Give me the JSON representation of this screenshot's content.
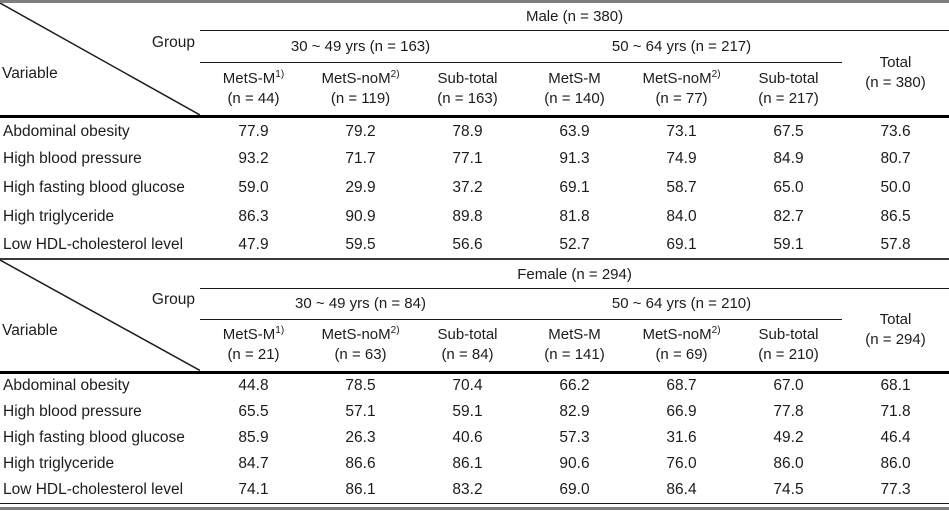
{
  "colors": {
    "text": "#1c1c1c",
    "thin_rule": "#1a1a1a",
    "thick_rule": "#000000",
    "gray_rule": "#7e7e7e"
  },
  "tables": [
    {
      "id": "male",
      "gender_header": "Male (n = 380)",
      "corner": {
        "group_label": "Group",
        "variable_label": "Variable"
      },
      "age_groups": [
        {
          "label": "30 ~ 49 yrs (n = 163)"
        },
        {
          "label": "50 ~ 64 yrs (n = 217)"
        }
      ],
      "total_header": {
        "line1": "Total",
        "line2": "(n = 380)"
      },
      "columns": [
        {
          "label": "MetS-M",
          "sup": "1)",
          "n": "(n = 44)"
        },
        {
          "label": "MetS-noM",
          "sup": "2)",
          "n": "(n = 119)"
        },
        {
          "label": "Sub-total",
          "sup": "",
          "n": "(n = 163)"
        },
        {
          "label": "MetS-M",
          "sup": "",
          "n": "(n = 140)"
        },
        {
          "label": "MetS-noM",
          "sup": "2)",
          "n": "(n = 77)"
        },
        {
          "label": "Sub-total",
          "sup": "",
          "n": "(n = 217)"
        }
      ],
      "rows": [
        {
          "variable": "Abdominal obesity",
          "values": [
            "77.9",
            "79.2",
            "78.9",
            "63.9",
            "73.1",
            "67.5",
            "73.6"
          ]
        },
        {
          "variable": "High blood pressure",
          "values": [
            "93.2",
            "71.7",
            "77.1",
            "91.3",
            "74.9",
            "84.9",
            "80.7"
          ]
        },
        {
          "variable": "High fasting blood glucose",
          "values": [
            "59.0",
            "29.9",
            "37.2",
            "69.1",
            "58.7",
            "65.0",
            "50.0"
          ]
        },
        {
          "variable": "High triglyceride",
          "values": [
            "86.3",
            "90.9",
            "89.8",
            "81.8",
            "84.0",
            "82.7",
            "86.5"
          ]
        },
        {
          "variable": "Low HDL-cholesterol level",
          "values": [
            "47.9",
            "59.5",
            "56.6",
            "52.7",
            "69.1",
            "59.1",
            "57.8"
          ]
        }
      ]
    },
    {
      "id": "female",
      "gender_header": "Female (n = 294)",
      "corner": {
        "group_label": "Group",
        "variable_label": "Variable"
      },
      "age_groups": [
        {
          "label": "30 ~ 49 yrs (n = 84)"
        },
        {
          "label": "50 ~ 64 yrs (n = 210)"
        }
      ],
      "total_header": {
        "line1": "Total",
        "line2": "(n = 294)"
      },
      "columns": [
        {
          "label": "MetS-M",
          "sup": "1)",
          "n": "(n = 21)"
        },
        {
          "label": "MetS-noM",
          "sup": "2)",
          "n": "(n = 63)"
        },
        {
          "label": "Sub-total",
          "sup": "",
          "n": "(n = 84)"
        },
        {
          "label": "MetS-M",
          "sup": "",
          "n": "(n = 141)"
        },
        {
          "label": "MetS-noM",
          "sup": "2)",
          "n": "(n = 69)"
        },
        {
          "label": "Sub-total",
          "sup": "",
          "n": "(n = 210)"
        }
      ],
      "rows": [
        {
          "variable": "Abdominal obesity",
          "values": [
            "44.8",
            "78.5",
            "70.4",
            "66.2",
            "68.7",
            "67.0",
            "68.1"
          ]
        },
        {
          "variable": "High blood pressure",
          "values": [
            "65.5",
            "57.1",
            "59.1",
            "82.9",
            "66.9",
            "77.8",
            "71.8"
          ]
        },
        {
          "variable": "High fasting blood glucose",
          "values": [
            "85.9",
            "26.3",
            "40.6",
            "57.3",
            "31.6",
            "49.2",
            "46.4"
          ]
        },
        {
          "variable": "High triglyceride",
          "values": [
            "84.7",
            "86.6",
            "86.1",
            "90.6",
            "76.0",
            "86.0",
            "86.0"
          ]
        },
        {
          "variable": "Low HDL-cholesterol level",
          "values": [
            "74.1",
            "86.1",
            "83.2",
            "69.0",
            "86.4",
            "74.5",
            "77.3"
          ]
        }
      ]
    }
  ]
}
